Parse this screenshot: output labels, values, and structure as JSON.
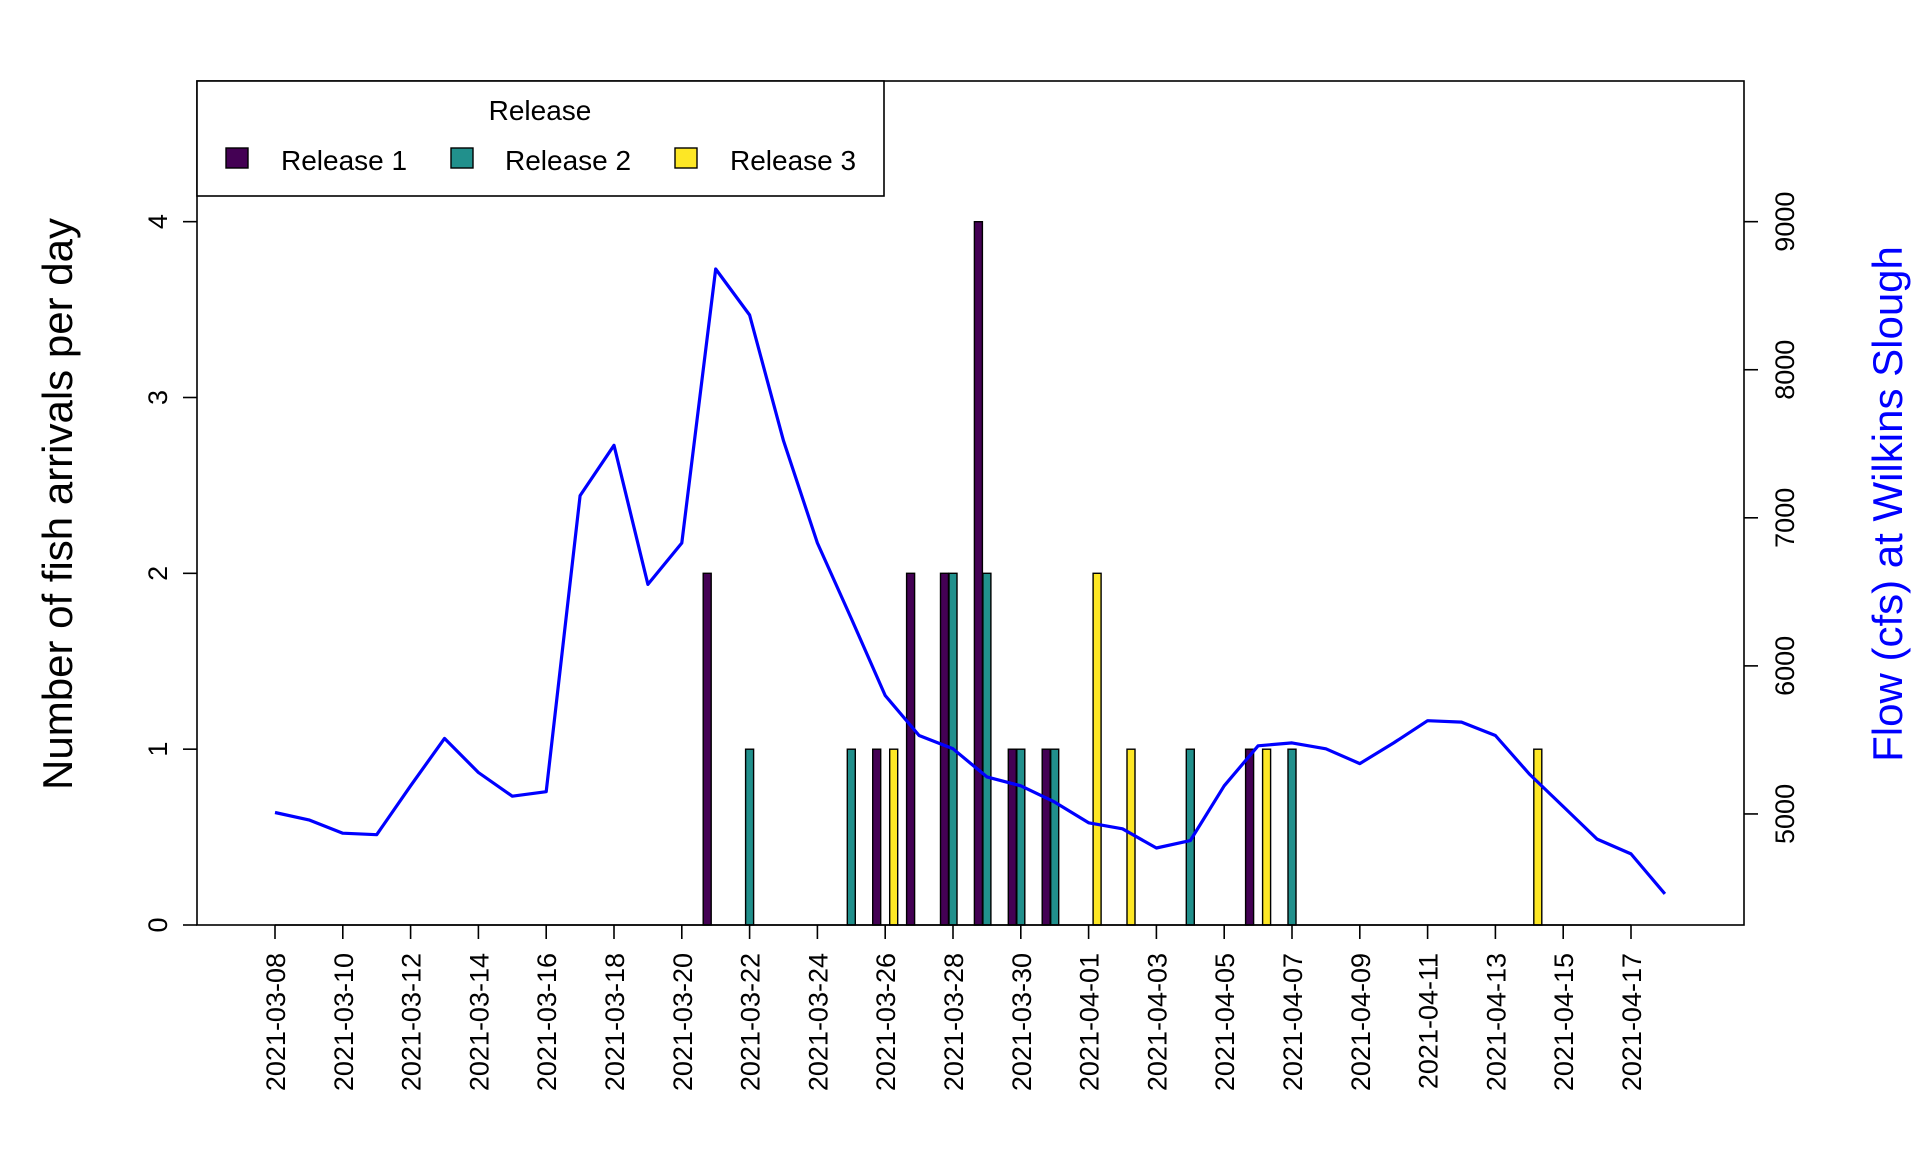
{
  "chart_data": {
    "type": "bar",
    "ylabel": "Number of fish arrivals per day",
    "y2label": "Flow (cfs) at Wilkins Slough",
    "ylim": [
      0,
      4.8
    ],
    "y2lim": [
      4250,
      9950
    ],
    "y_ticks": [
      "0",
      "1",
      "2",
      "3",
      "4"
    ],
    "y2_ticks": [
      "5000",
      "6000",
      "7000",
      "8000",
      "9000"
    ],
    "x_tick_labels": [
      "2021-03-08",
      "2021-03-10",
      "2021-03-12",
      "2021-03-14",
      "2021-03-16",
      "2021-03-18",
      "2021-03-20",
      "2021-03-22",
      "2021-03-24",
      "2021-03-26",
      "2021-03-28",
      "2021-03-30",
      "2021-04-01",
      "2021-04-03",
      "2021-04-05",
      "2021-04-07",
      "2021-04-09",
      "2021-04-11",
      "2021-04-13",
      "2021-04-15",
      "2021-04-17"
    ],
    "legend": {
      "title": "Release",
      "position": "top-left"
    },
    "series": [
      {
        "name": "Release 1",
        "color": "#440154",
        "points": [
          {
            "date": "2021-03-21",
            "value": 2
          },
          {
            "date": "2021-03-26",
            "value": 1
          },
          {
            "date": "2021-03-27",
            "value": 2
          },
          {
            "date": "2021-03-28",
            "value": 2
          },
          {
            "date": "2021-03-29",
            "value": 4
          },
          {
            "date": "2021-03-30",
            "value": 1
          },
          {
            "date": "2021-03-31",
            "value": 1
          },
          {
            "date": "2021-04-06",
            "value": 1
          }
        ]
      },
      {
        "name": "Release 2",
        "color": "#21908C",
        "points": [
          {
            "date": "2021-03-22",
            "value": 1
          },
          {
            "date": "2021-03-25",
            "value": 1
          },
          {
            "date": "2021-03-28",
            "value": 2
          },
          {
            "date": "2021-03-29",
            "value": 2
          },
          {
            "date": "2021-03-30",
            "value": 1
          },
          {
            "date": "2021-03-31",
            "value": 1
          },
          {
            "date": "2021-04-04",
            "value": 1
          },
          {
            "date": "2021-04-07",
            "value": 1
          }
        ]
      },
      {
        "name": "Release 3",
        "color": "#FDE725",
        "points": [
          {
            "date": "2021-03-26",
            "value": 1
          },
          {
            "date": "2021-04-01",
            "value": 2
          },
          {
            "date": "2021-04-02",
            "value": 1
          },
          {
            "date": "2021-04-06",
            "value": 1
          },
          {
            "date": "2021-04-14",
            "value": 1
          }
        ]
      }
    ],
    "flow": {
      "color": "#0000FF",
      "points": [
        {
          "date": "2021-03-08",
          "value": 5010
        },
        {
          "date": "2021-03-09",
          "value": 4960
        },
        {
          "date": "2021-03-10",
          "value": 4870
        },
        {
          "date": "2021-03-11",
          "value": 4860
        },
        {
          "date": "2021-03-12",
          "value": 5190
        },
        {
          "date": "2021-03-13",
          "value": 5510
        },
        {
          "date": "2021-03-14",
          "value": 5280
        },
        {
          "date": "2021-03-15",
          "value": 5120
        },
        {
          "date": "2021-03-16",
          "value": 5150
        },
        {
          "date": "2021-03-17",
          "value": 7150
        },
        {
          "date": "2021-03-18",
          "value": 7490
        },
        {
          "date": "2021-03-19",
          "value": 6550
        },
        {
          "date": "2021-03-20",
          "value": 6830
        },
        {
          "date": "2021-03-21",
          "value": 8680
        },
        {
          "date": "2021-03-22",
          "value": 8370
        },
        {
          "date": "2021-03-23",
          "value": 7520
        },
        {
          "date": "2021-03-24",
          "value": 6830
        },
        {
          "date": "2021-03-25",
          "value": 6320
        },
        {
          "date": "2021-03-26",
          "value": 5800
        },
        {
          "date": "2021-03-27",
          "value": 5530
        },
        {
          "date": "2021-03-28",
          "value": 5440
        },
        {
          "date": "2021-03-29",
          "value": 5250
        },
        {
          "date": "2021-03-30",
          "value": 5190
        },
        {
          "date": "2021-03-31",
          "value": 5080
        },
        {
          "date": "2021-04-01",
          "value": 4940
        },
        {
          "date": "2021-04-02",
          "value": 4900
        },
        {
          "date": "2021-04-03",
          "value": 4770
        },
        {
          "date": "2021-04-04",
          "value": 4820
        },
        {
          "date": "2021-04-05",
          "value": 5190
        },
        {
          "date": "2021-04-06",
          "value": 5460
        },
        {
          "date": "2021-04-07",
          "value": 5480
        },
        {
          "date": "2021-04-08",
          "value": 5440
        },
        {
          "date": "2021-04-09",
          "value": 5340
        },
        {
          "date": "2021-04-10",
          "value": 5480
        },
        {
          "date": "2021-04-11",
          "value": 5630
        },
        {
          "date": "2021-04-12",
          "value": 5620
        },
        {
          "date": "2021-04-13",
          "value": 5530
        },
        {
          "date": "2021-04-14",
          "value": 5270
        },
        {
          "date": "2021-04-15",
          "value": 5050
        },
        {
          "date": "2021-04-16",
          "value": 4830
        },
        {
          "date": "2021-04-17",
          "value": 4730
        },
        {
          "date": "2021-04-18",
          "value": 4460
        }
      ]
    }
  }
}
